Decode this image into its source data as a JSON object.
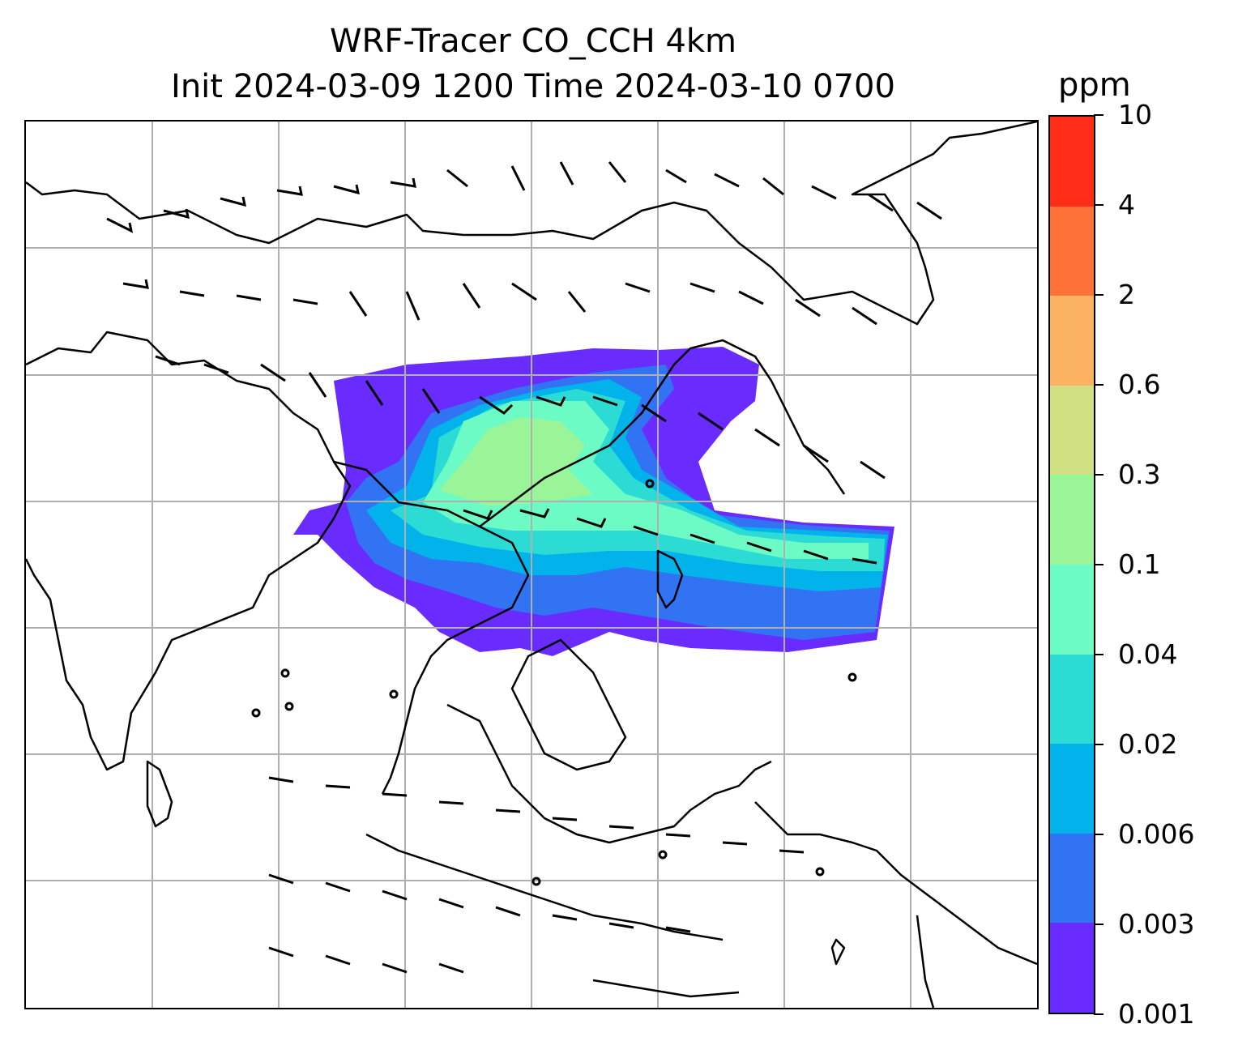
{
  "figure": {
    "title_line1": "WRF-Tracer CO_CCH 4km",
    "title_line2": "Init 2024-03-09 1200 Time 2024-03-10 0700"
  },
  "colorbar": {
    "unit": "ppm",
    "levels": [
      "0.001",
      "0.003",
      "0.006",
      "0.02",
      "0.04",
      "0.1",
      "0.3",
      "0.6",
      "2",
      "4",
      "10"
    ],
    "colors": [
      "#6a2bff",
      "#3173f2",
      "#02b2ea",
      "#2cdcd4",
      "#6cfbc4",
      "#99f597",
      "#d0e082",
      "#fcb263",
      "#fe723a",
      "#ff2d18"
    ]
  },
  "map": {
    "gridlines": true,
    "coastline_color": "#000000",
    "grid_color": "#b0b0b0",
    "plume_color_scale": "rainbow"
  }
}
